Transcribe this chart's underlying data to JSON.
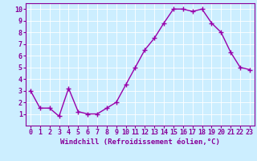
{
  "x": [
    0,
    1,
    2,
    3,
    4,
    5,
    6,
    7,
    8,
    9,
    10,
    11,
    12,
    13,
    14,
    15,
    16,
    17,
    18,
    19,
    20,
    21,
    22,
    23
  ],
  "y": [
    3.0,
    1.5,
    1.5,
    0.8,
    3.2,
    1.2,
    1.0,
    1.0,
    1.5,
    2.0,
    3.5,
    5.0,
    6.5,
    7.5,
    8.8,
    10.0,
    10.0,
    9.8,
    10.0,
    8.8,
    8.0,
    6.3,
    5.0,
    4.8
  ],
  "line_color": "#9900aa",
  "marker": "+",
  "marker_size": 4,
  "marker_linewidth": 1.0,
  "xlabel": "Windchill (Refroidissement éolien,°C)",
  "xlim": [
    -0.5,
    23.5
  ],
  "ylim": [
    0,
    10.5
  ],
  "yticks": [
    1,
    2,
    3,
    4,
    5,
    6,
    7,
    8,
    9,
    10
  ],
  "xticks": [
    0,
    1,
    2,
    3,
    4,
    5,
    6,
    7,
    8,
    9,
    10,
    11,
    12,
    13,
    14,
    15,
    16,
    17,
    18,
    19,
    20,
    21,
    22,
    23
  ],
  "bg_color": "#cceeff",
  "grid_color": "#ffffff",
  "line_color_axis": "#880099",
  "tick_label_color": "#880099",
  "xlabel_color": "#880099",
  "xlabel_fontsize": 6.5,
  "tick_fontsize": 6.0,
  "line_width": 1.0,
  "spine_color": "#880099",
  "fig_bg": "#cceeff"
}
